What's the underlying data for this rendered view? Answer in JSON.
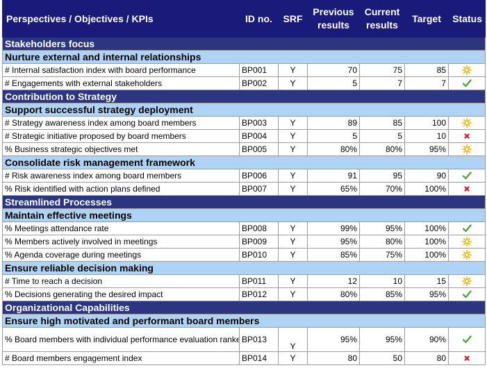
{
  "header": {
    "perspective_col": "Perspectives / Objectives / KPIs",
    "id_col": "ID no.",
    "srf_col": "SRF",
    "previous_col": "Previous results",
    "current_col": "Current results",
    "target_col": "Target",
    "status_col": "Status"
  },
  "status_icons": {
    "warning": {
      "icon": "sun-warning-icon",
      "color": "#f2b600"
    },
    "ok": {
      "icon": "check-icon",
      "color": "#3aa62a"
    },
    "bad": {
      "icon": "cross-icon",
      "color": "#e3101a"
    }
  },
  "perspectives": [
    {
      "title": "Stakeholders focus",
      "objectives": [
        {
          "title": "Nurture external and internal relationships",
          "kpis": [
            {
              "name": "# Internal satisfaction index with board performance",
              "id": "BP001",
              "srf": "Y",
              "previous": "70",
              "current": "75",
              "target": "85",
              "status": "warning"
            },
            {
              "name": "# Engagements with external stakeholders",
              "id": "BP002",
              "srf": "Y",
              "previous": "5",
              "current": "7",
              "target": "7",
              "status": "ok"
            }
          ]
        }
      ]
    },
    {
      "title": "Contribution to Strategy",
      "objectives": [
        {
          "title": "Support successful strategy deployment",
          "kpis": [
            {
              "name": "# Strategy awareness index among board members",
              "id": "BP003",
              "srf": "Y",
              "previous": "89",
              "current": "85",
              "target": "100",
              "status": "warning"
            },
            {
              "name": "# Strategic initiative proposed by board members",
              "id": "BP004",
              "srf": "Y",
              "previous": "5",
              "current": "5",
              "target": "10",
              "status": "bad"
            },
            {
              "name": "% Business strategic objectives met",
              "id": "BP005",
              "srf": "Y",
              "previous": "80%",
              "current": "80%",
              "target": "95%",
              "status": "warning"
            }
          ]
        },
        {
          "title": "Consolidate risk management framework",
          "kpis": [
            {
              "name": "# Risk awareness index among board members",
              "id": "BP006",
              "srf": "Y",
              "previous": "91",
              "current": "95",
              "target": "90",
              "status": "ok"
            },
            {
              "name": "% Risk identified with action plans defined",
              "id": "BP007",
              "srf": "Y",
              "previous": "65%",
              "current": "70%",
              "target": "100%",
              "status": "bad"
            }
          ]
        }
      ]
    },
    {
      "title": "Streamlined Processes",
      "objectives": [
        {
          "title": "Maintain effective meetings",
          "kpis": [
            {
              "name": "% Meetings attendance rate",
              "id": "BP008",
              "srf": "Y",
              "previous": "99%",
              "current": "95%",
              "target": "100%",
              "status": "ok"
            },
            {
              "name": "% Members actively involved in meetings",
              "id": "BP009",
              "srf": "Y",
              "previous": "95%",
              "current": "80%",
              "target": "100%",
              "status": "warning"
            },
            {
              "name": "% Agenda coverage during meetings",
              "id": "BP010",
              "srf": "Y",
              "previous": "85%",
              "current": "75%",
              "target": "100%",
              "status": "warning"
            }
          ]
        },
        {
          "title": "Ensure reliable decision making",
          "kpis": [
            {
              "name": "# Time to reach a decision",
              "id": "BP011",
              "srf": "Y",
              "previous": "12",
              "current": "10",
              "target": "15",
              "status": "warning"
            },
            {
              "name": "% Decisions generating the desired impact",
              "id": "BP012",
              "srf": "Y",
              "previous": "80%",
              "current": "85%",
              "target": "95%",
              "status": "ok"
            }
          ]
        }
      ]
    },
    {
      "title": "Organizational Capabilities",
      "objectives": [
        {
          "title": "Ensure high motivated and performant board members",
          "kpis": [
            {
              "name": "% Board members with individual performance evaluation ranked at or above \"satisfactory\"",
              "id": "BP013",
              "srf": "Y",
              "previous": "95%",
              "current": "95%",
              "target": "90%",
              "status": "ok",
              "tall": true
            },
            {
              "name": "# Board members engagement index",
              "id": "BP014",
              "srf": "Y",
              "previous": "80",
              "current": "50",
              "target": "80",
              "status": "bad"
            }
          ]
        }
      ]
    }
  ]
}
